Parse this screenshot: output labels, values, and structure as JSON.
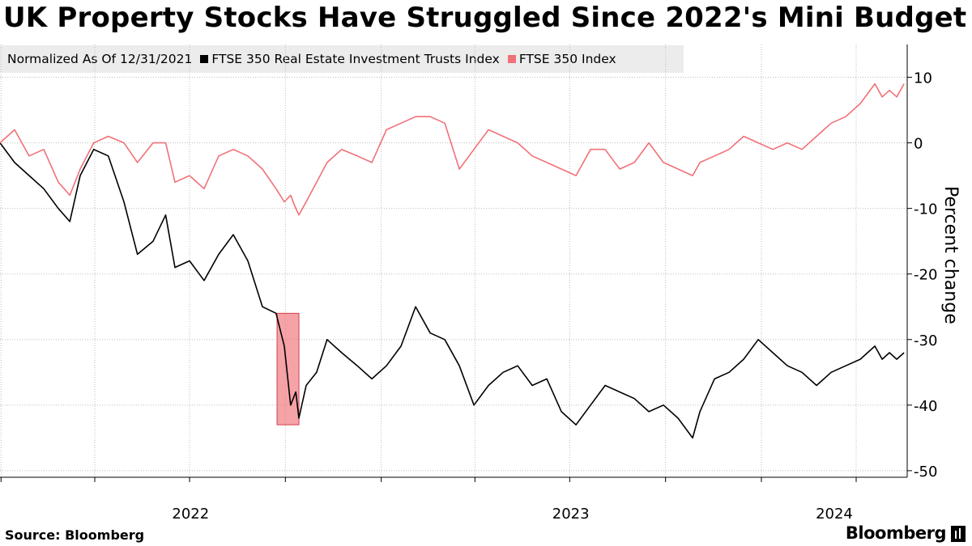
{
  "chart_data": {
    "type": "line",
    "title": "UK Property Stocks Have Struggled Since 2022's Mini Budget",
    "note": "Normalized As Of 12/31/2021",
    "ylabel": "Percent change",
    "ylim": [
      -51,
      15
    ],
    "yticks": [
      10,
      0,
      -10,
      -20,
      -30,
      -40,
      -50
    ],
    "xrange": [
      "2021-12-31",
      "2024-05-20"
    ],
    "xtick_labels": [
      "2022",
      "2023",
      "2024"
    ],
    "highlight": {
      "x_start": "2022-09-23",
      "x_end": "2022-10-14",
      "y_low": -43,
      "y_high": -26
    },
    "series": [
      {
        "name": "FTSE 350 Real Estate Investment Trusts Index",
        "color": "#000000",
        "points": [
          [
            "2021-12-31",
            0
          ],
          [
            "2022-01-14",
            -3
          ],
          [
            "2022-01-28",
            -5
          ],
          [
            "2022-02-11",
            -7
          ],
          [
            "2022-02-25",
            -10
          ],
          [
            "2022-03-08",
            -12
          ],
          [
            "2022-03-18",
            -5
          ],
          [
            "2022-03-31",
            -1
          ],
          [
            "2022-04-14",
            -2
          ],
          [
            "2022-04-29",
            -9
          ],
          [
            "2022-05-12",
            -17
          ],
          [
            "2022-05-27",
            -15
          ],
          [
            "2022-06-08",
            -11
          ],
          [
            "2022-06-17",
            -19
          ],
          [
            "2022-07-01",
            -18
          ],
          [
            "2022-07-15",
            -21
          ],
          [
            "2022-07-29",
            -17
          ],
          [
            "2022-08-12",
            -14
          ],
          [
            "2022-08-26",
            -18
          ],
          [
            "2022-09-09",
            -25
          ],
          [
            "2022-09-22",
            -26
          ],
          [
            "2022-09-30",
            -31
          ],
          [
            "2022-10-06",
            -40
          ],
          [
            "2022-10-11",
            -38
          ],
          [
            "2022-10-14",
            -42
          ],
          [
            "2022-10-21",
            -37
          ],
          [
            "2022-10-31",
            -35
          ],
          [
            "2022-11-10",
            -30
          ],
          [
            "2022-11-24",
            -32
          ],
          [
            "2022-12-09",
            -34
          ],
          [
            "2022-12-23",
            -36
          ],
          [
            "2023-01-06",
            -34
          ],
          [
            "2023-01-20",
            -31
          ],
          [
            "2023-02-03",
            -25
          ],
          [
            "2023-02-17",
            -29
          ],
          [
            "2023-03-03",
            -30
          ],
          [
            "2023-03-17",
            -34
          ],
          [
            "2023-03-31",
            -40
          ],
          [
            "2023-04-14",
            -37
          ],
          [
            "2023-04-28",
            -35
          ],
          [
            "2023-05-12",
            -34
          ],
          [
            "2023-05-26",
            -37
          ],
          [
            "2023-06-09",
            -36
          ],
          [
            "2023-06-23",
            -41
          ],
          [
            "2023-07-07",
            -43
          ],
          [
            "2023-07-21",
            -40
          ],
          [
            "2023-08-04",
            -37
          ],
          [
            "2023-08-18",
            -38
          ],
          [
            "2023-09-01",
            -39
          ],
          [
            "2023-09-15",
            -41
          ],
          [
            "2023-09-29",
            -40
          ],
          [
            "2023-10-13",
            -42
          ],
          [
            "2023-10-27",
            -45
          ],
          [
            "2023-11-03",
            -41
          ],
          [
            "2023-11-17",
            -36
          ],
          [
            "2023-12-01",
            -35
          ],
          [
            "2023-12-15",
            -33
          ],
          [
            "2023-12-29",
            -30
          ],
          [
            "2024-01-12",
            -32
          ],
          [
            "2024-01-26",
            -34
          ],
          [
            "2024-02-09",
            -35
          ],
          [
            "2024-02-23",
            -37
          ],
          [
            "2024-03-08",
            -35
          ],
          [
            "2024-03-22",
            -34
          ],
          [
            "2024-04-05",
            -33
          ],
          [
            "2024-04-19",
            -31
          ],
          [
            "2024-04-26",
            -33
          ],
          [
            "2024-05-03",
            -32
          ],
          [
            "2024-05-10",
            -33
          ],
          [
            "2024-05-17",
            -32
          ]
        ]
      },
      {
        "name": "FTSE 350 Index",
        "color": "#f07178",
        "points": [
          [
            "2021-12-31",
            0
          ],
          [
            "2022-01-14",
            2
          ],
          [
            "2022-01-28",
            -2
          ],
          [
            "2022-02-11",
            -1
          ],
          [
            "2022-02-25",
            -6
          ],
          [
            "2022-03-08",
            -8
          ],
          [
            "2022-03-18",
            -4
          ],
          [
            "2022-03-31",
            0
          ],
          [
            "2022-04-14",
            1
          ],
          [
            "2022-04-29",
            0
          ],
          [
            "2022-05-12",
            -3
          ],
          [
            "2022-05-27",
            0
          ],
          [
            "2022-06-08",
            0
          ],
          [
            "2022-06-17",
            -6
          ],
          [
            "2022-07-01",
            -5
          ],
          [
            "2022-07-15",
            -7
          ],
          [
            "2022-07-29",
            -2
          ],
          [
            "2022-08-12",
            -1
          ],
          [
            "2022-08-26",
            -2
          ],
          [
            "2022-09-09",
            -4
          ],
          [
            "2022-09-22",
            -7
          ],
          [
            "2022-09-30",
            -9
          ],
          [
            "2022-10-06",
            -8
          ],
          [
            "2022-10-11",
            -10
          ],
          [
            "2022-10-14",
            -11
          ],
          [
            "2022-10-21",
            -9
          ],
          [
            "2022-10-31",
            -6
          ],
          [
            "2022-11-10",
            -3
          ],
          [
            "2022-11-24",
            -1
          ],
          [
            "2022-12-09",
            -2
          ],
          [
            "2022-12-23",
            -3
          ],
          [
            "2023-01-06",
            2
          ],
          [
            "2023-01-20",
            3
          ],
          [
            "2023-02-03",
            4
          ],
          [
            "2023-02-17",
            4
          ],
          [
            "2023-03-03",
            3
          ],
          [
            "2023-03-17",
            -4
          ],
          [
            "2023-03-31",
            -1
          ],
          [
            "2023-04-14",
            2
          ],
          [
            "2023-04-28",
            1
          ],
          [
            "2023-05-12",
            0
          ],
          [
            "2023-05-26",
            -2
          ],
          [
            "2023-06-09",
            -3
          ],
          [
            "2023-06-23",
            -4
          ],
          [
            "2023-07-07",
            -5
          ],
          [
            "2023-07-21",
            -1
          ],
          [
            "2023-08-04",
            -1
          ],
          [
            "2023-08-18",
            -4
          ],
          [
            "2023-09-01",
            -3
          ],
          [
            "2023-09-15",
            0
          ],
          [
            "2023-09-29",
            -3
          ],
          [
            "2023-10-13",
            -4
          ],
          [
            "2023-10-27",
            -5
          ],
          [
            "2023-11-03",
            -3
          ],
          [
            "2023-11-17",
            -2
          ],
          [
            "2023-12-01",
            -1
          ],
          [
            "2023-12-15",
            1
          ],
          [
            "2023-12-29",
            0
          ],
          [
            "2024-01-12",
            -1
          ],
          [
            "2024-01-26",
            0
          ],
          [
            "2024-02-09",
            -1
          ],
          [
            "2024-02-23",
            1
          ],
          [
            "2024-03-08",
            3
          ],
          [
            "2024-03-22",
            4
          ],
          [
            "2024-04-05",
            6
          ],
          [
            "2024-04-19",
            9
          ],
          [
            "2024-04-26",
            7
          ],
          [
            "2024-05-03",
            8
          ],
          [
            "2024-05-10",
            7
          ],
          [
            "2024-05-17",
            9
          ]
        ]
      }
    ]
  },
  "footer": {
    "source": "Source: Bloomberg",
    "brand": "Bloomberg"
  }
}
